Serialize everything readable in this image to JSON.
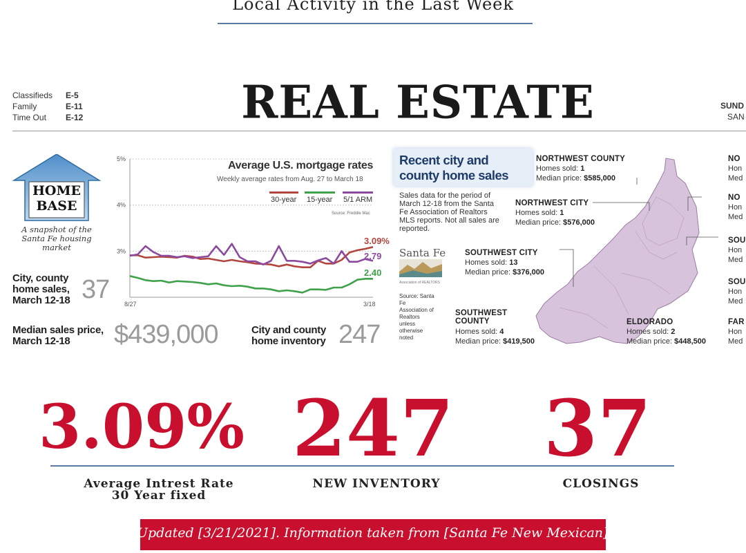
{
  "heading": "Local Activity in the Last Week",
  "newspaper": {
    "toc": [
      {
        "name": "Classifieds",
        "page": "E-5"
      },
      {
        "name": "Family",
        "page": "E-11"
      },
      {
        "name": "Time Out",
        "page": "E-12"
      }
    ],
    "masthead": "REAL ESTATE",
    "masthead_right_top": "SUND",
    "masthead_right_bottom": "SAN",
    "home_base": {
      "title_line1": "HOME",
      "title_line2": "BASE",
      "description": "A snapshot of the Santa Fe housing market"
    },
    "stats": {
      "sales_label": "City, county home sales, March 12-18",
      "sales_value": "37",
      "median_label": "Median sales price, March 12-18",
      "median_value": "$439,000",
      "inventory_label": "City and county home inventory",
      "inventory_value": "247"
    },
    "chart_data": {
      "type": "line",
      "title": "Average U.S. mortgage rates",
      "subtitle": "Weekly average rates from Aug. 27 to March 18",
      "source": "Source: Freddie Mac",
      "x_start_label": "8/27",
      "x_end_label": "3/18",
      "ylim": [
        2,
        5
      ],
      "yticks": [
        "5%",
        "4%",
        "3%"
      ],
      "grid": true,
      "legend_placement": "top",
      "series": [
        {
          "name": "30-year",
          "color": "#b2463f",
          "end_label": "3.09%",
          "values": [
            2.91,
            2.91,
            2.86,
            2.87,
            2.88,
            2.87,
            2.86,
            2.9,
            2.88,
            2.83,
            2.84,
            2.81,
            2.78,
            2.81,
            2.78,
            2.76,
            2.73,
            2.72,
            2.71,
            2.67,
            2.71,
            2.67,
            2.65,
            2.65,
            2.79,
            2.73,
            2.73,
            2.81,
            2.97,
            3.02,
            3.05,
            3.09
          ]
        },
        {
          "name": "15-year",
          "color": "#3fa14a",
          "end_label": "2.40",
          "values": [
            2.46,
            2.42,
            2.37,
            2.35,
            2.36,
            2.32,
            2.35,
            2.34,
            2.33,
            2.31,
            2.28,
            2.3,
            2.26,
            2.24,
            2.25,
            2.23,
            2.19,
            2.19,
            2.17,
            2.13,
            2.15,
            2.13,
            2.1,
            2.17,
            2.17,
            2.16,
            2.21,
            2.21,
            2.28,
            2.38,
            2.4,
            2.4
          ]
        },
        {
          "name": "5/1 ARM",
          "color": "#8b4a9e",
          "end_label": "2.79",
          "values": [
            2.9,
            2.93,
            3.11,
            2.98,
            2.9,
            2.9,
            2.87,
            2.89,
            2.85,
            2.87,
            2.89,
            3.11,
            2.92,
            3.16,
            2.87,
            2.78,
            2.78,
            2.71,
            2.79,
            3.11,
            2.79,
            2.79,
            2.77,
            2.73,
            2.8,
            2.85,
            2.73,
            3.0,
            2.77,
            2.77,
            2.83,
            2.79
          ]
        }
      ]
    },
    "sales": {
      "title": "Recent city and county home sales",
      "description": "Sales data for the period of March 12-18 from the Santa Fe Association of Realtors MLS reports. Not all sales are reported.",
      "logo_text": "Santa Fe",
      "logo_caption": "Association of REALTORS",
      "source": "Source: Santa Fe Association of Realtors unless otherwise noted"
    },
    "map_color": "#d8c3dc",
    "areas": [
      {
        "name": "NORTHWEST COUNTY",
        "sold_label": "Homes sold:",
        "sold": "1",
        "price_label": "Median price:",
        "price": "$585,000"
      },
      {
        "name": "NORTHWEST CITY",
        "sold_label": "Homes sold:",
        "sold": "1",
        "price_label": "Median price:",
        "price": "$576,000"
      },
      {
        "name": "SOUTHWEST CITY",
        "sold_label": "Homes sold:",
        "sold": "13",
        "price_label": "Median price:",
        "price": "$376,000"
      },
      {
        "name": "SOUTHWEST COUNTY",
        "sold_label": "Homes sold:",
        "sold": "4",
        "price_label": "Median price:",
        "price": "$419,500"
      },
      {
        "name": "ELDORADO",
        "sold_label": "Homes sold:",
        "sold": "2",
        "price_label": "Median price:",
        "price": "$448,500"
      }
    ],
    "edge_labels": [
      {
        "name": "NO",
        "l1": "Hon",
        "l2": "Med"
      },
      {
        "name": "NO",
        "l1": "Hon",
        "l2": "Med"
      },
      {
        "name": "SOU",
        "l1": "Hon",
        "l2": "Med"
      },
      {
        "name": "SOU",
        "l1": "Hon",
        "l2": "Med"
      },
      {
        "name": "FAR",
        "l1": "Hon",
        "l2": "Med"
      }
    ]
  },
  "metrics": [
    {
      "value": "3.09%",
      "label": "Average Intrest Rate 30 Year fixed"
    },
    {
      "value": "247",
      "label": "NEW INVENTORY"
    },
    {
      "value": "37",
      "label": "CLOSINGS"
    }
  ],
  "footer": "Updated [3/21/2021]. Information taken from [Santa Fe New Mexican].",
  "accent_color": "#c8102e",
  "rule_color": "#5a7aa5"
}
